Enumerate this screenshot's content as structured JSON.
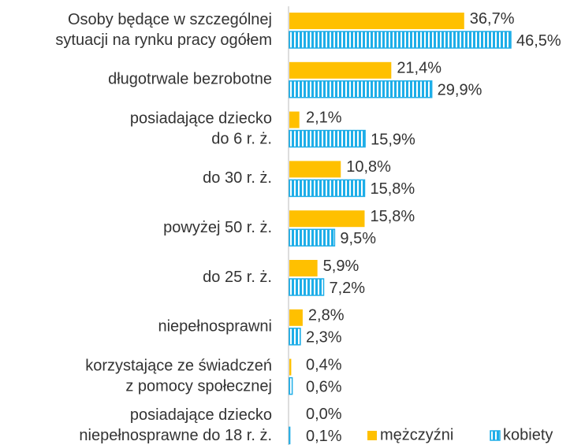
{
  "chart_data": {
    "type": "bar",
    "orientation": "horizontal",
    "categories": [
      [
        "Osoby będące w szczególnej",
        "sytuacji na rynku pracy ogółem"
      ],
      [
        "długotrwale bezrobotne"
      ],
      [
        "posiadające dziecko",
        "do 6 r. ż."
      ],
      [
        "do 30 r. ż."
      ],
      [
        "powyżej 50 r. ż."
      ],
      [
        "do 25 r. ż."
      ],
      [
        "niepełnosprawni"
      ],
      [
        "korzystające ze świadczeń",
        "z pomocy społecznej"
      ],
      [
        "posiadające dziecko",
        "niepełnosprawne do 18 r. ż."
      ]
    ],
    "series": [
      {
        "name": "mężczyźni",
        "color": "#FFC000",
        "values": [
          36.7,
          21.4,
          2.1,
          10.8,
          15.8,
          5.9,
          2.8,
          0.4,
          0.0
        ],
        "value_labels": [
          "36,7%",
          "21,4%",
          "2,1%",
          "10,8%",
          "15,8%",
          "5,9%",
          "2,8%",
          "0,4%",
          "0,0%"
        ]
      },
      {
        "name": "kobiety",
        "color": "#1EAEE8",
        "pattern": "vertical-stripes",
        "values": [
          46.5,
          29.9,
          15.9,
          15.8,
          9.5,
          7.2,
          2.3,
          0.6,
          0.1
        ],
        "value_labels": [
          "46,5%",
          "29,9%",
          "15,9%",
          "15,8%",
          "9,5%",
          "7,2%",
          "2,3%",
          "0,6%",
          "0,1%"
        ]
      }
    ],
    "legend": "bottom-right"
  }
}
